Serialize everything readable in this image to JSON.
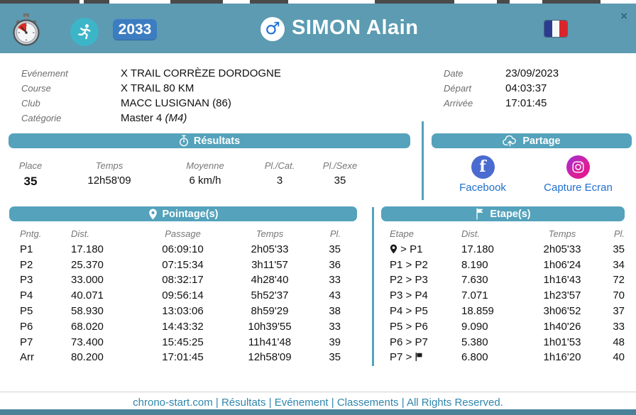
{
  "header": {
    "bib": "2033",
    "name": "SIMON Alain",
    "gender_symbol": "♂",
    "close_symbol": "×",
    "icons": [
      "stopwatch-logo-icon",
      "runner-icon",
      "male-gender-icon",
      "france-flag-icon",
      "close-icon"
    ]
  },
  "info": {
    "left": [
      {
        "label": "Evénement",
        "value": "X TRAIL CORRÈZE DORDOGNE"
      },
      {
        "label": "Course",
        "value": "X TRAIL 80 KM"
      },
      {
        "label": "Club",
        "value": "MACC LUSIGNAN (86)"
      },
      {
        "label": "Catégorie",
        "value": "Master 4",
        "suffix_italic": "(M4)"
      }
    ],
    "right": [
      {
        "label": "Date",
        "value": "23/09/2023"
      },
      {
        "label": "Départ",
        "value": "04:03:37"
      },
      {
        "label": "Arrivée",
        "value": "17:01:45"
      }
    ]
  },
  "results": {
    "title": "Résultats",
    "icon": "stopwatch-icon",
    "headers": [
      "Place",
      "Temps",
      "Moyenne",
      "Pl./Cat.",
      "Pl./Sexe"
    ],
    "values": [
      "35",
      "12h58'09",
      "6 km/h",
      "3",
      "35"
    ]
  },
  "share": {
    "title": "Partage",
    "icon": "cloud-upload-icon",
    "items": [
      {
        "label": "Facebook",
        "icon": "facebook-icon"
      },
      {
        "label": "Capture Ecran",
        "icon": "screenshot-camera-icon"
      }
    ]
  },
  "pointage": {
    "title": "Pointage(s)",
    "icon": "location-pin-icon",
    "headers": [
      "Pntg.",
      "Dist.",
      "Passage",
      "Temps",
      "Pl."
    ],
    "rows": [
      [
        "P1",
        "17.180",
        "06:09:10",
        "2h05'33",
        "35"
      ],
      [
        "P2",
        "25.370",
        "07:15:34",
        "3h11'57",
        "36"
      ],
      [
        "P3",
        "33.000",
        "08:32:17",
        "4h28'40",
        "33"
      ],
      [
        "P4",
        "40.071",
        "09:56:14",
        "5h52'37",
        "43"
      ],
      [
        "P5",
        "58.930",
        "13:03:06",
        "8h59'29",
        "38"
      ],
      [
        "P6",
        "68.020",
        "14:43:32",
        "10h39'55",
        "33"
      ],
      [
        "P7",
        "73.400",
        "15:45:25",
        "11h41'48",
        "39"
      ],
      [
        "Arr",
        "80.200",
        "17:01:45",
        "12h58'09",
        "35"
      ]
    ]
  },
  "etapes": {
    "title": "Etape(s)",
    "icon": "flag-icon",
    "headers": [
      "Etape",
      "Dist.",
      "Temps",
      "Pl."
    ],
    "rows": [
      {
        "etape": "> P1",
        "icon": "start",
        "dist": "17.180",
        "temps": "2h05'33",
        "pl": "35"
      },
      {
        "etape": "P1 > P2",
        "dist": "8.190",
        "temps": "1h06'24",
        "pl": "34"
      },
      {
        "etape": "P2 > P3",
        "dist": "7.630",
        "temps": "1h16'43",
        "pl": "72"
      },
      {
        "etape": "P3 > P4",
        "dist": "7.071",
        "temps": "1h23'57",
        "pl": "70"
      },
      {
        "etape": "P4 > P5",
        "dist": "18.859",
        "temps": "3h06'52",
        "pl": "37"
      },
      {
        "etape": "P5 > P6",
        "dist": "9.090",
        "temps": "1h40'26",
        "pl": "33"
      },
      {
        "etape": "P6 > P7",
        "dist": "5.380",
        "temps": "1h01'53",
        "pl": "48"
      },
      {
        "etape": "P7 >",
        "icon": "finish",
        "dist": "6.800",
        "temps": "1h16'20",
        "pl": "40"
      }
    ]
  },
  "footer": {
    "parts": [
      "chrono-start.com",
      "Résultats",
      "Evénement",
      "Classements",
      "All Rights Reserved."
    ],
    "separator": "|"
  },
  "colors": {
    "header_bg": "#5c9bb1",
    "section_bar": "#54a2bb",
    "bib_badge": "#3c7dc1",
    "runner_circle": "#3db5c8",
    "male_symbol": "#1a6fd6",
    "facebook_blue": "#4a6bd0",
    "capture_gradient": [
      "#a32bd4",
      "#e6128e"
    ],
    "share_link": "#1e6fcf",
    "footer_link": "#2e86ad",
    "bottom_strip": "#4a8198"
  }
}
